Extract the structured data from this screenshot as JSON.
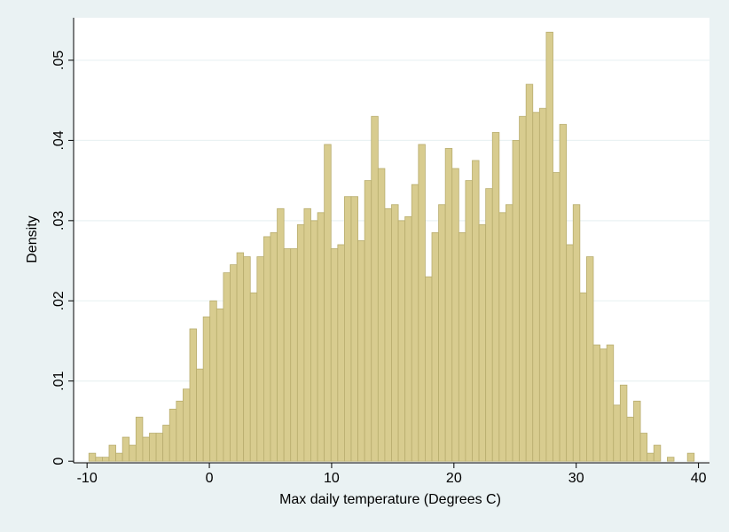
{
  "chart_data": {
    "type": "histogram",
    "x_label": "Max daily temperature (Degrees C)",
    "y_label": "Density",
    "bins": [
      -9.85,
      -9.3,
      -8.75,
      -8.2,
      -7.65,
      -7.1,
      -6.55,
      -6,
      -5.45,
      -4.9,
      -4.35,
      -3.8,
      -3.25,
      -2.7,
      -2.15,
      -1.6,
      -1.05,
      -0.5,
      0.05,
      0.6,
      1.15,
      1.7,
      2.25,
      2.8,
      3.35,
      3.9,
      4.45,
      5,
      5.55,
      6.1,
      6.65,
      7.2,
      7.75,
      8.3,
      8.85,
      9.4,
      9.95,
      10.5,
      11.05,
      11.6,
      12.15,
      12.7,
      13.25,
      13.8,
      14.35,
      14.9,
      15.45,
      16,
      16.55,
      17.1,
      17.65,
      18.2,
      18.75,
      19.3,
      19.85,
      20.4,
      20.95,
      21.5,
      22.05,
      22.6,
      23.15,
      23.7,
      24.25,
      24.8,
      25.35,
      25.9,
      26.45,
      27,
      27.55,
      28.1,
      28.65,
      29.2,
      29.75,
      30.3,
      30.85,
      31.4,
      31.95,
      32.5,
      33.05,
      33.6,
      34.15,
      34.7,
      35.25,
      35.8,
      36.35,
      36.9,
      37.45,
      38,
      38.55,
      39.1,
      39.65
    ],
    "values": [
      0.001,
      0.0005,
      0.0005,
      0.002,
      0.001,
      0.003,
      0.002,
      0.0055,
      0.003,
      0.0035,
      0.0035,
      0.0045,
      0.0065,
      0.0075,
      0.009,
      0.0165,
      0.0115,
      0.018,
      0.02,
      0.019,
      0.0235,
      0.0245,
      0.026,
      0.0255,
      0.021,
      0.0255,
      0.028,
      0.0285,
      0.0315,
      0.0265,
      0.0265,
      0.0295,
      0.0315,
      0.03,
      0.031,
      0.0395,
      0.0265,
      0.027,
      0.033,
      0.033,
      0.0275,
      0.035,
      0.043,
      0.0365,
      0.0315,
      0.032,
      0.03,
      0.0305,
      0.0345,
      0.0395,
      0.023,
      0.0285,
      0.032,
      0.039,
      0.0365,
      0.0285,
      0.035,
      0.0375,
      0.0295,
      0.034,
      0.041,
      0.031,
      0.032,
      0.04,
      0.043,
      0.047,
      0.0435,
      0.044,
      0.0535,
      0.036,
      0.042,
      0.027,
      0.032,
      0.021,
      0.0255,
      0.0145,
      0.014,
      0.0145,
      0.007,
      0.0095,
      0.0055,
      0.0075,
      0.0035,
      0.001,
      0.002,
      0,
      0.0005,
      0,
      0,
      0.001
    ],
    "color": "#d8cc8f",
    "edge_color": "#b8ad6e",
    "xlim": [
      -11.1,
      40.9
    ],
    "ylim": [
      -0.0002,
      0.0553
    ],
    "xticks": [
      -10,
      0,
      10,
      20,
      30,
      40
    ],
    "yticks": [
      0,
      {
        "value": 0.01,
        "label": ".01"
      },
      {
        "value": 0.02,
        "label": ".02"
      },
      {
        "value": 0.03,
        "label": ".03"
      },
      {
        "value": 0.04,
        "label": ".04"
      },
      {
        "value": 0.05,
        "label": ".05"
      }
    ],
    "grid": true
  }
}
